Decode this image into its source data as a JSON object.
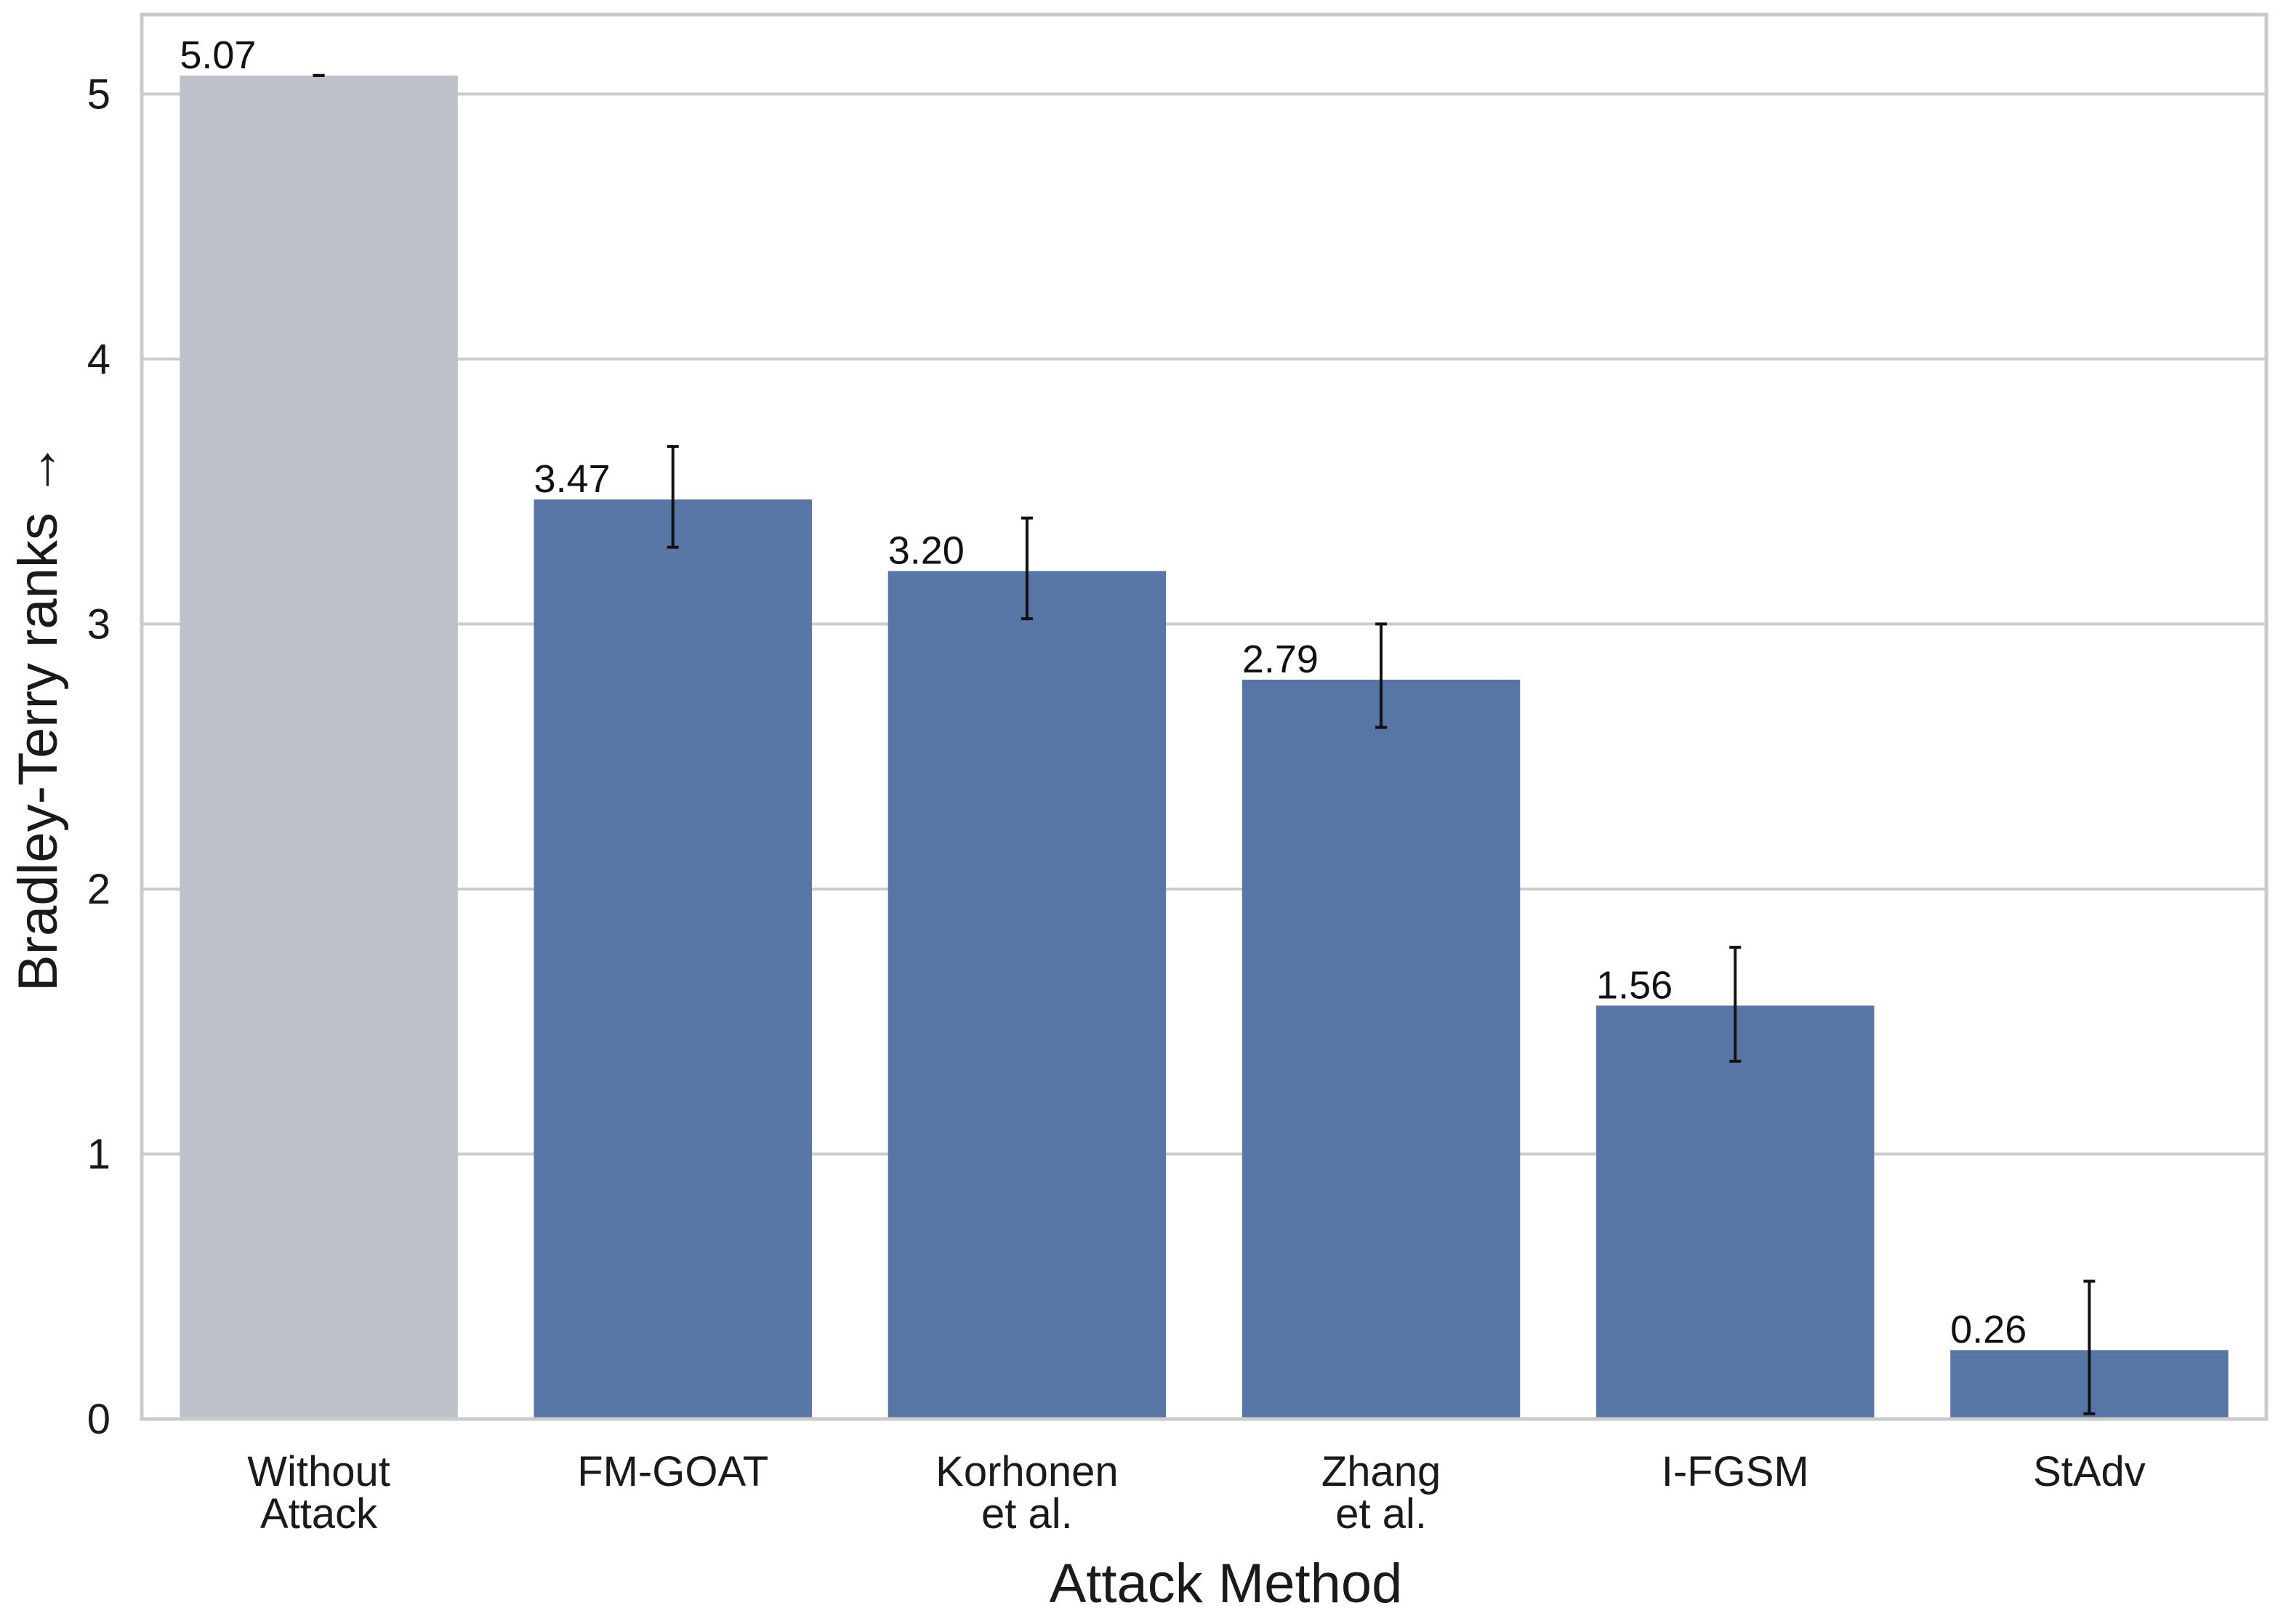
{
  "chart_data": {
    "type": "bar",
    "title": "",
    "xlabel": "Attack Method",
    "ylabel": "Bradley-Terry ranks →",
    "ylim": [
      0,
      5.3
    ],
    "yticks": [
      "0",
      "1",
      "2",
      "3",
      "4",
      "5"
    ],
    "grid": "horizontal",
    "categories": [
      [
        "Without",
        "Attack"
      ],
      [
        "FM-GOAT"
      ],
      [
        "Korhonen",
        "et al."
      ],
      [
        "Zhang",
        "et al."
      ],
      [
        "I-FGSM"
      ],
      [
        "StAdv"
      ]
    ],
    "values": [
      5.07,
      3.47,
      3.2,
      2.79,
      1.56,
      0.26
    ],
    "value_labels": [
      "5.07",
      "3.47",
      "3.20",
      "2.79",
      "1.56",
      "0.26"
    ],
    "error_low": [
      5.07,
      3.29,
      3.02,
      2.61,
      1.35,
      0.02
    ],
    "error_high": [
      5.07,
      3.67,
      3.4,
      3.0,
      1.78,
      0.52
    ],
    "bar_colors": [
      "#bdc2c9",
      "#5876a5",
      "#5876a5",
      "#5876a5",
      "#5876a5",
      "#5876a5"
    ]
  }
}
